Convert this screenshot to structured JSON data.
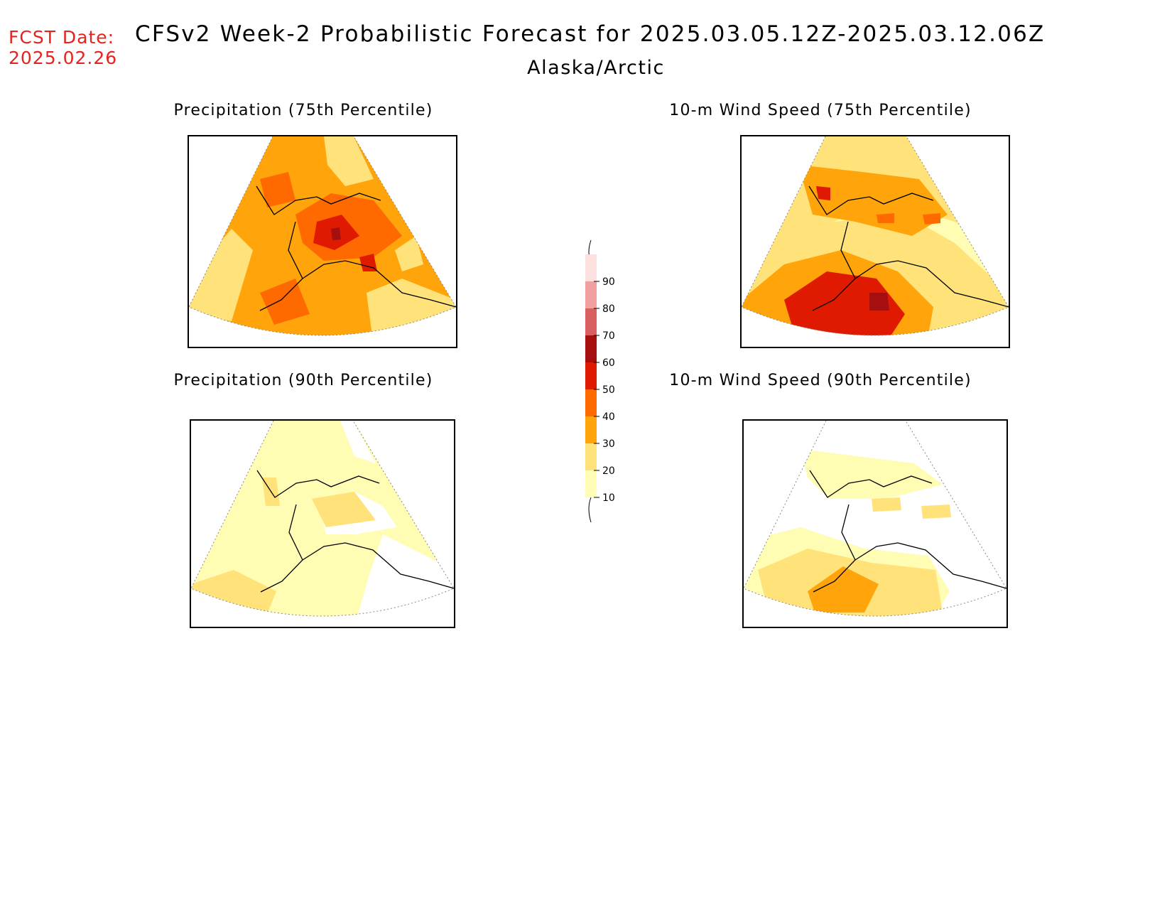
{
  "header": {
    "fcst_label": "FCST Date:",
    "fcst_date": "2025.02.26",
    "title": "CFSv2 Week-2 Probabilistic Forecast for 2025.03.05.12Z-2025.03.12.06Z",
    "subtitle": "Alaska/Arctic"
  },
  "panels": [
    {
      "title": "Precipitation (75th Percentile)"
    },
    {
      "title": "10-m Wind Speed (75th Percentile)"
    },
    {
      "title": "Precipitation (90th Percentile)"
    },
    {
      "title": "10-m Wind Speed (90th Percentile)"
    }
  ],
  "legend": {
    "levels": [
      "10",
      "20",
      "30",
      "40",
      "50",
      "60",
      "70",
      "80",
      "90"
    ],
    "colors": [
      "#fffcb4",
      "#ffe27a",
      "#ffa40a",
      "#ff6a00",
      "#e01a00",
      "#a50f0f",
      "#d96060",
      "#f0a0a0",
      "#fde0e0"
    ]
  },
  "colors": {
    "c10": "#fffcb4",
    "c20": "#ffe27a",
    "c30": "#ffa40a",
    "c40": "#ff6a00",
    "c50": "#e01a00",
    "c60": "#a50f0f",
    "fcst_text": "#e8221e"
  }
}
